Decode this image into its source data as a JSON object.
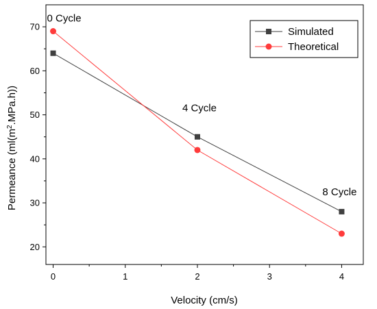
{
  "chart_data": {
    "type": "line",
    "xlabel": "Velocity (cm/s)",
    "ylabel_prefix": "Permeance (ml(m",
    "ylabel_sup": "2",
    "ylabel_suffix": ".MPa.h))",
    "x_tick_labels": [
      "0",
      "1",
      "2",
      "3",
      "4"
    ],
    "y_ticks": [
      20,
      30,
      40,
      50,
      60,
      70
    ],
    "xlim": [
      -0.1,
      4.3
    ],
    "ylim": [
      16,
      75
    ],
    "legend_position": "top-right",
    "series": [
      {
        "name": "Simulated",
        "color": "#404040",
        "marker": "square",
        "x": [
          0,
          2,
          4
        ],
        "y": [
          64,
          45,
          28
        ]
      },
      {
        "name": "Theoretical",
        "color": "#ff3b3b",
        "marker": "circle",
        "x": [
          0,
          2,
          4
        ],
        "y": [
          69,
          42,
          23
        ]
      }
    ],
    "annotations": [
      {
        "text": "0 Cycle",
        "x": 0,
        "y": 69
      },
      {
        "text": "4 Cycle",
        "x": 2,
        "y": 45
      },
      {
        "text": "8 Cycle",
        "x": 4,
        "y": 28
      }
    ]
  }
}
